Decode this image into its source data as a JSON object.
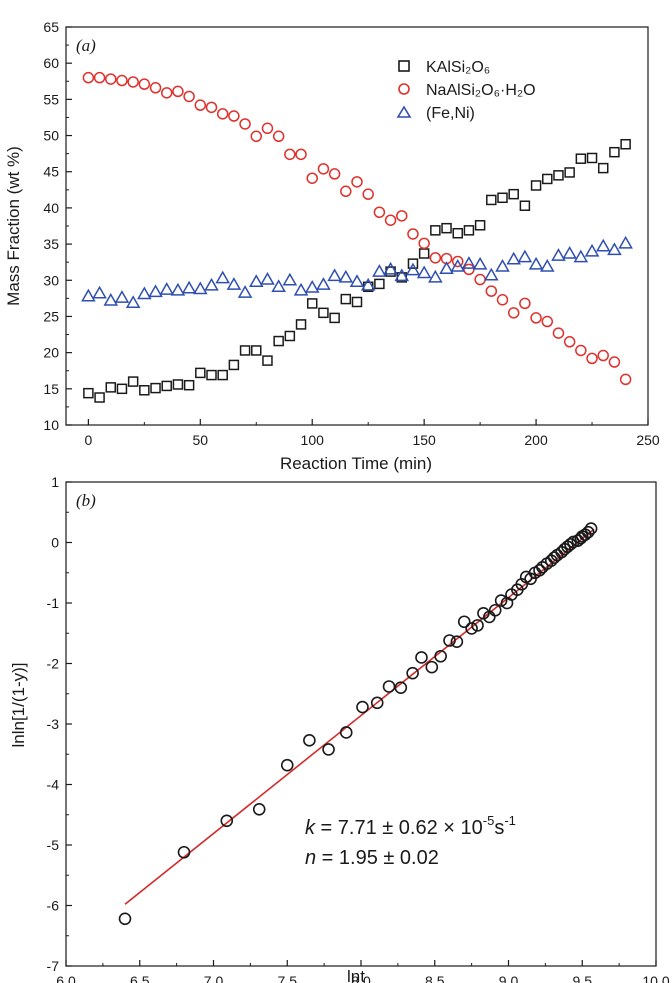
{
  "chart_data": [
    {
      "type": "scatter",
      "panel_label": "(a)",
      "xlabel": "Reaction Time (min)",
      "ylabel": "Mass Fraction (wt %)",
      "xlim": [
        -10,
        250
      ],
      "ylim": [
        10,
        65
      ],
      "xticks": [
        0,
        50,
        100,
        150,
        200,
        250
      ],
      "yticks": [
        10,
        15,
        20,
        25,
        30,
        35,
        40,
        45,
        50,
        55,
        60,
        65
      ],
      "legend_position": "top-right",
      "series": [
        {
          "name": "KAlSi₂O₆",
          "marker": "square",
          "color": "#1a1a1a",
          "x": [
            0,
            5,
            10,
            15,
            20,
            25,
            30,
            35,
            40,
            45,
            50,
            55,
            60,
            65,
            70,
            75,
            80,
            85,
            90,
            95,
            100,
            105,
            110,
            115,
            120,
            125,
            130,
            135,
            140,
            145,
            150,
            155,
            160,
            165,
            170,
            175,
            180,
            185,
            190,
            195,
            200,
            205,
            210,
            215,
            220,
            225,
            230,
            235,
            240
          ],
          "y": [
            14.4,
            13.8,
            15.2,
            15.0,
            16.0,
            14.8,
            15.1,
            15.4,
            15.6,
            15.5,
            17.2,
            16.9,
            16.9,
            18.3,
            20.3,
            20.3,
            18.9,
            21.6,
            22.3,
            23.9,
            26.8,
            25.5,
            24.8,
            27.4,
            27.0,
            29.1,
            29.5,
            31.2,
            30.4,
            32.3,
            33.7,
            36.9,
            37.2,
            36.5,
            36.9,
            37.6,
            41.1,
            41.4,
            41.9,
            40.3,
            43.1,
            44.0,
            44.5,
            44.9,
            46.8,
            46.9,
            45.5,
            47.7,
            48.8
          ]
        },
        {
          "name": "NaAlSi₂O₆·H₂O",
          "marker": "circle",
          "color": "#e0302b",
          "x": [
            0,
            5,
            10,
            15,
            20,
            25,
            30,
            35,
            40,
            45,
            50,
            55,
            60,
            65,
            70,
            75,
            80,
            85,
            90,
            95,
            100,
            105,
            110,
            115,
            120,
            125,
            130,
            135,
            140,
            145,
            150,
            155,
            160,
            165,
            170,
            175,
            180,
            185,
            190,
            195,
            200,
            205,
            210,
            215,
            220,
            225,
            230,
            235,
            240
          ],
          "y": [
            58.0,
            58.0,
            57.8,
            57.6,
            57.4,
            57.1,
            56.6,
            55.9,
            56.1,
            55.4,
            54.2,
            53.9,
            53.0,
            52.7,
            51.6,
            49.9,
            51.0,
            49.9,
            47.4,
            47.4,
            44.1,
            45.4,
            44.7,
            42.3,
            43.6,
            41.9,
            39.4,
            38.3,
            38.9,
            36.4,
            35.1,
            33.1,
            33.0,
            32.6,
            31.5,
            30.1,
            28.5,
            27.3,
            25.5,
            26.8,
            24.8,
            24.3,
            22.7,
            21.5,
            20.3,
            19.2,
            19.6,
            18.7,
            16.3
          ]
        },
        {
          "name": "(Fe,Ni)",
          "marker": "triangle",
          "color": "#2f4fb0",
          "x": [
            0,
            5,
            10,
            15,
            20,
            25,
            30,
            35,
            40,
            45,
            50,
            55,
            60,
            65,
            70,
            75,
            80,
            85,
            90,
            95,
            100,
            105,
            110,
            115,
            120,
            125,
            130,
            135,
            140,
            145,
            150,
            155,
            160,
            165,
            170,
            175,
            180,
            185,
            190,
            195,
            200,
            205,
            210,
            215,
            220,
            225,
            230,
            235,
            240
          ],
          "y": [
            27.8,
            28.2,
            27.2,
            27.6,
            26.9,
            28.1,
            28.4,
            28.7,
            28.6,
            28.9,
            28.8,
            29.3,
            30.3,
            29.4,
            28.3,
            29.8,
            30.1,
            29.1,
            30.0,
            28.6,
            29.0,
            29.4,
            30.6,
            30.4,
            29.8,
            29.3,
            31.2,
            31.5,
            30.6,
            31.4,
            31.0,
            30.4,
            31.6,
            31.9,
            32.3,
            32.2,
            30.7,
            31.9,
            32.9,
            33.2,
            32.2,
            31.9,
            33.4,
            33.7,
            33.2,
            34.0,
            34.7,
            34.2,
            35.1
          ]
        }
      ]
    },
    {
      "type": "scatter",
      "panel_label": "(b)",
      "xlabel": "lnt",
      "ylabel": "lnln[1/(1-y)]",
      "xlim": [
        6.0,
        10.0
      ],
      "ylim": [
        -7,
        1
      ],
      "xticks": [
        "6.0",
        "6.5",
        "7.0",
        "7.5",
        "8.0",
        "8.5",
        "9.0",
        "9.5",
        "10.0"
      ],
      "yticks": [
        "-7",
        "-6",
        "-5",
        "-4",
        "-3",
        "-2",
        "-1",
        "0",
        "1"
      ],
      "points": {
        "marker": "circle",
        "color": "#1a1a1a",
        "x": [
          6.4,
          6.8,
          7.09,
          7.31,
          7.5,
          7.65,
          7.78,
          7.9,
          8.01,
          8.11,
          8.19,
          8.27,
          8.35,
          8.41,
          8.48,
          8.54,
          8.6,
          8.65,
          8.7,
          8.75,
          8.79,
          8.83,
          8.87,
          8.91,
          8.95,
          8.99,
          9.02,
          9.06,
          9.09,
          9.12,
          9.15,
          9.18,
          9.21,
          9.23,
          9.26,
          9.29,
          9.31,
          9.33,
          9.36,
          9.38,
          9.4,
          9.42,
          9.44,
          9.47,
          9.49,
          9.5,
          9.52,
          9.54,
          9.56
        ],
        "y": [
          -6.22,
          -5.12,
          -4.6,
          -4.41,
          -3.68,
          -3.27,
          -3.42,
          -3.14,
          -2.72,
          -2.65,
          -2.38,
          -2.4,
          -2.16,
          -1.9,
          -2.06,
          -1.88,
          -1.62,
          -1.64,
          -1.31,
          -1.42,
          -1.37,
          -1.17,
          -1.23,
          -1.12,
          -0.96,
          -1.0,
          -0.86,
          -0.78,
          -0.69,
          -0.57,
          -0.6,
          -0.5,
          -0.46,
          -0.41,
          -0.35,
          -0.3,
          -0.25,
          -0.21,
          -0.16,
          -0.11,
          -0.07,
          -0.03,
          0.01,
          0.03,
          0.07,
          0.1,
          0.13,
          0.17,
          0.23
        ]
      },
      "fit_line": {
        "color": "#d42a2a",
        "x": [
          6.4,
          9.58
        ],
        "y": [
          -5.98,
          0.22
        ]
      },
      "annotation": {
        "k_symbol": "k",
        "k_text": " = 7.71 ± 0.62 × 10",
        "k_exp": "-5",
        "k_unit": "s",
        "k_unit_exp": "-1",
        "n_symbol": "n",
        "n_text": " = 1.95 ± 0.02"
      }
    }
  ]
}
